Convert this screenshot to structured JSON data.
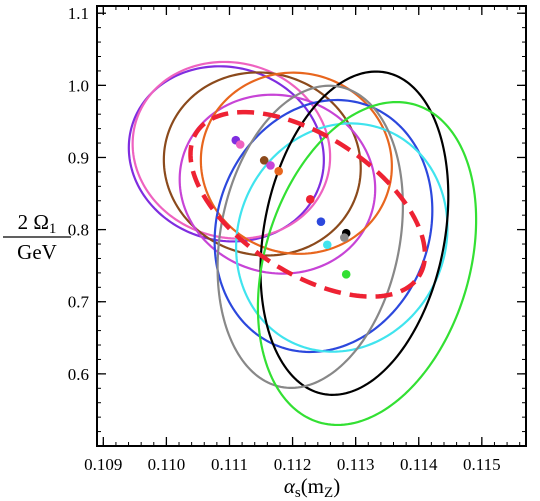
{
  "chart_data": {
    "type": "scatter",
    "title": "",
    "xlabel": {
      "main": "α",
      "sub1": "s",
      "mid": "(m",
      "sub2": "Z",
      "end": ")"
    },
    "ylabel": {
      "numerator_prefix": "2 Ω",
      "numerator_sub": "1",
      "denominator": "GeV"
    },
    "xlim": [
      0.1089,
      0.1157
    ],
    "ylim": [
      0.5,
      1.11
    ],
    "x_ticks": [
      {
        "value": 0.109,
        "label": "0.109"
      },
      {
        "value": 0.11,
        "label": "0.110"
      },
      {
        "value": 0.111,
        "label": "0.111"
      },
      {
        "value": 0.112,
        "label": "0.112"
      },
      {
        "value": 0.113,
        "label": "0.113"
      },
      {
        "value": 0.114,
        "label": "0.114"
      },
      {
        "value": 0.115,
        "label": "0.115"
      }
    ],
    "x_minor_step": 0.0002,
    "y_ticks": [
      {
        "value": 0.6,
        "label": "0.6"
      },
      {
        "value": 0.7,
        "label": "0.7"
      },
      {
        "value": 0.8,
        "label": "0.8"
      },
      {
        "value": 0.9,
        "label": "0.9"
      },
      {
        "value": 1.0,
        "label": "1.0"
      },
      {
        "value": 1.1,
        "label": "1.1"
      }
    ],
    "y_minor_step": 0.02,
    "series": [
      {
        "color": "#7f2de0",
        "point": [
          0.1111,
          0.924
        ],
        "ellipse": {
          "cx": 0.11095,
          "cy": 0.905,
          "a": 0.00156,
          "b": 0.12,
          "angle_deg": -16.5
        }
      },
      {
        "color": "#ee62c0",
        "point": [
          0.11117,
          0.918
        ],
        "ellipse": {
          "cx": 0.11103,
          "cy": 0.91,
          "a": 0.00158,
          "b": 0.121,
          "angle_deg": -16.5
        }
      },
      {
        "color": "#8b4a1c",
        "point": [
          0.11155,
          0.896
        ],
        "ellipse": {
          "cx": 0.11152,
          "cy": 0.891,
          "a": 0.00157,
          "b": 0.126,
          "angle_deg": -16
        }
      },
      {
        "color": "#c744d6",
        "point": [
          0.11165,
          0.889
        ],
        "ellipse": {
          "cx": 0.11176,
          "cy": 0.863,
          "a": 0.00156,
          "b": 0.123,
          "angle_deg": -15.5
        }
      },
      {
        "color": "#e8661e",
        "point": [
          0.11178,
          0.881
        ],
        "ellipse": {
          "cx": 0.11206,
          "cy": 0.892,
          "a": 0.00152,
          "b": 0.125,
          "angle_deg": -15.5
        }
      },
      {
        "color": "#ee2233",
        "point": [
          0.11228,
          0.842
        ],
        "ellipse": {
          "cx": 0.11224,
          "cy": 0.835,
          "a": 0.0021,
          "b": 0.095,
          "angle_deg": -33
        }
      },
      {
        "color": "#2c48dd",
        "point": [
          0.11245,
          0.811
        ],
        "ellipse": {
          "cx": 0.11249,
          "cy": 0.805,
          "a": 0.00168,
          "b": 0.178,
          "angle_deg": -20
        }
      },
      {
        "color": "#40e4ee",
        "point": [
          0.11255,
          0.779
        ],
        "ellipse": {
          "cx": 0.11278,
          "cy": 0.789,
          "a": 0.00164,
          "b": 0.161,
          "angle_deg": -24
        }
      },
      {
        "color": "#000000",
        "point": [
          0.11285,
          0.795
        ],
        "ellipse": {
          "cx": 0.11298,
          "cy": 0.795,
          "a": 0.00143,
          "b": 0.227,
          "angle_deg": -11
        }
      },
      {
        "color": "#888888",
        "point": [
          0.11282,
          0.789
        ],
        "ellipse": {
          "cx": 0.11228,
          "cy": 0.79,
          "a": 0.00142,
          "b": 0.212,
          "angle_deg": -11
        }
      },
      {
        "color": "#33e033",
        "point": [
          0.11285,
          0.738
        ],
        "ellipse": {
          "cx": 0.11318,
          "cy": 0.753,
          "a": 0.00162,
          "b": 0.23,
          "angle_deg": -17
        }
      }
    ],
    "dashed_ellipse_index": 5,
    "grid": false,
    "legend": "none"
  }
}
